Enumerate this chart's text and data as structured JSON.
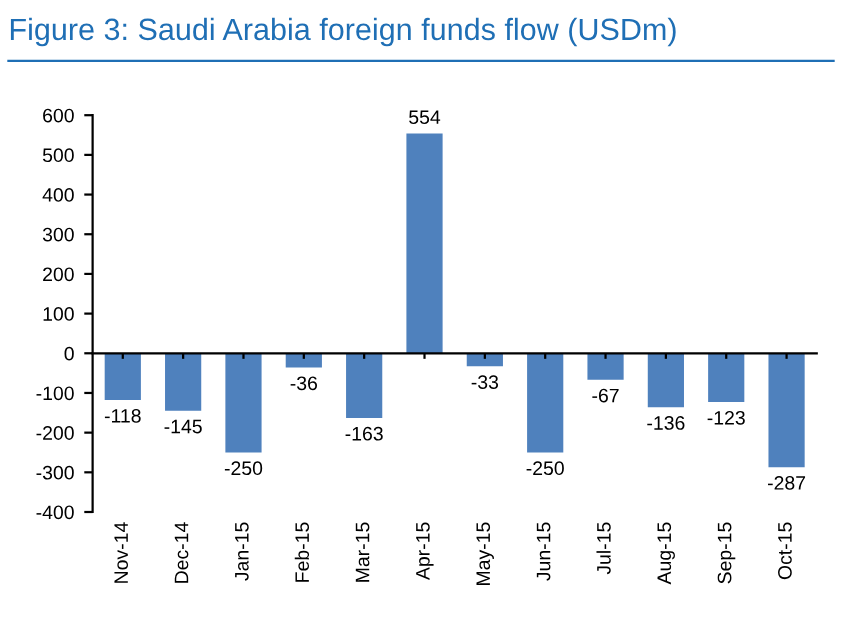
{
  "chart_data": {
    "type": "bar",
    "title": "Figure 3: Saudi Arabia foreign funds flow (USDm)",
    "categories": [
      "Nov-14",
      "Dec-14",
      "Jan-15",
      "Feb-15",
      "Mar-15",
      "Apr-15",
      "May-15",
      "Jun-15",
      "Jul-15",
      "Aug-15",
      "Sep-15",
      "Oct-15"
    ],
    "values": [
      -118,
      -145,
      -250,
      -36,
      -163,
      554,
      -33,
      -250,
      -67,
      -136,
      -123,
      -287
    ],
    "color": "#4f81bd",
    "ylim": [
      -400,
      600
    ],
    "yticks": [
      -400,
      -300,
      -200,
      -100,
      0,
      100,
      200,
      300,
      400,
      500,
      600
    ],
    "data_labels": true
  }
}
